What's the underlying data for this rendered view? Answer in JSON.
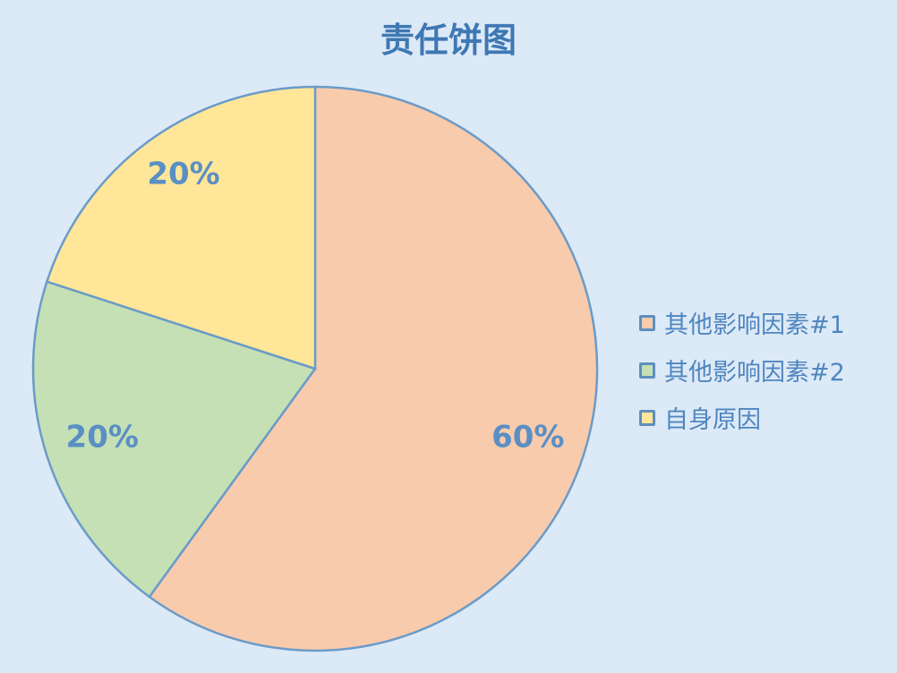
{
  "chart_data": {
    "type": "pie",
    "title": "责任饼图",
    "slices": [
      {
        "label": "其他影响因素#1",
        "value": 60,
        "display": "60%",
        "color": "#f8cbad"
      },
      {
        "label": "其他影响因素#2",
        "value": 20,
        "display": "20%",
        "color": "#c5e0b4"
      },
      {
        "label": "自身原因",
        "value": 20,
        "display": "20%",
        "color": "#ffe699"
      }
    ],
    "start_angle": "top",
    "direction": "clockwise",
    "legend_position": "right",
    "stroke_color": "#6b9bc8",
    "label_color": "#5a8fc4"
  }
}
